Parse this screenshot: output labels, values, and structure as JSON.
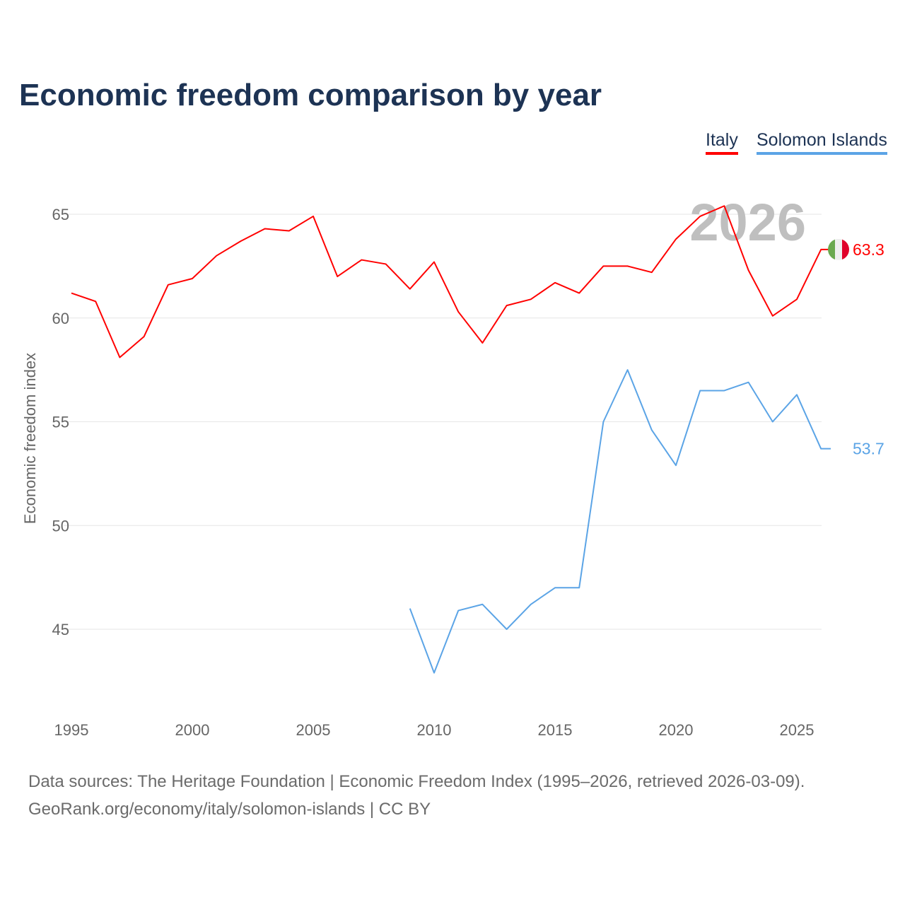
{
  "title": "Economic freedom comparison by year",
  "legend": [
    "Italy",
    "Solomon Islands"
  ],
  "footer": {
    "line1": "Data sources: The Heritage Foundation | Economic Freedom Index (1995–2026, retrieved 2026-03-09).",
    "line2": "GeoRank.org/economy/italy/solomon-islands | CC BY"
  },
  "chart_data": {
    "type": "line",
    "title": "Economic freedom comparison by year",
    "xlabel": "",
    "ylabel": "Economic freedom index",
    "xlim": [
      1995,
      2026
    ],
    "ylim": [
      41.5,
      67.5
    ],
    "x_ticks": [
      1995,
      2000,
      2005,
      2010,
      2015,
      2020,
      2025
    ],
    "y_ticks": [
      45,
      50,
      55,
      60,
      65
    ],
    "year_watermark": "2026",
    "grid": true,
    "legend_position": "top-right",
    "series": [
      {
        "name": "Italy",
        "color": "#ff0000",
        "end_label": "63.3",
        "x": [
          1995,
          1996,
          1997,
          1998,
          1999,
          2000,
          2001,
          2002,
          2003,
          2004,
          2005,
          2006,
          2007,
          2008,
          2009,
          2010,
          2011,
          2012,
          2013,
          2014,
          2015,
          2016,
          2017,
          2018,
          2019,
          2020,
          2021,
          2022,
          2023,
          2024,
          2025,
          2026
        ],
        "values": [
          61.2,
          60.8,
          58.1,
          59.1,
          61.6,
          61.9,
          63.0,
          63.7,
          64.3,
          64.2,
          64.9,
          62.0,
          62.8,
          62.6,
          61.4,
          62.7,
          60.3,
          58.8,
          60.6,
          60.9,
          61.7,
          61.2,
          62.5,
          62.5,
          62.2,
          63.8,
          64.9,
          65.4,
          62.3,
          60.1,
          60.9,
          63.3
        ]
      },
      {
        "name": "Solomon Islands",
        "color": "#5ba4e6",
        "end_label": "53.7",
        "x": [
          2009,
          2010,
          2011,
          2012,
          2013,
          2014,
          2015,
          2016,
          2017,
          2018,
          2019,
          2020,
          2021,
          2022,
          2023,
          2024,
          2025,
          2026
        ],
        "values": [
          46.0,
          42.9,
          45.9,
          46.2,
          45.0,
          46.2,
          47.0,
          47.0,
          55.0,
          57.5,
          54.6,
          52.9,
          56.5,
          56.5,
          56.9,
          55.0,
          56.3,
          53.7
        ]
      }
    ]
  }
}
